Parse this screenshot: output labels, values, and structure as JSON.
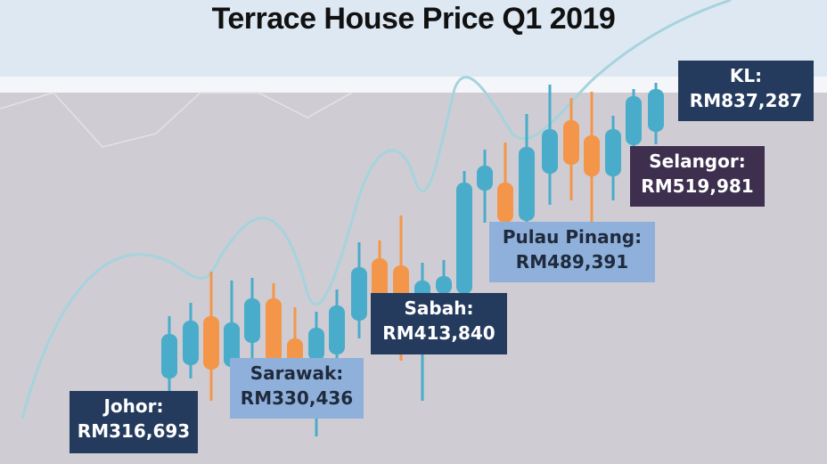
{
  "title": "Terrace House Price Q1 2019",
  "colors": {
    "header_bg": "#dde8f3",
    "plot_bg": "#cfcdd3",
    "teal": "#4aaccb",
    "orange": "#f4964a",
    "trend_line": "#a6d3dd",
    "navy_box": "#243b5e",
    "purple_box": "#3e2f4f",
    "lightblue_box": "#8fb0da"
  },
  "chart_data": {
    "type": "annotated-candlestick",
    "xlabel": "",
    "ylabel": "",
    "annotations": [
      {
        "state": "Johor:",
        "price": "RM316,693",
        "value": 316693,
        "style": "navy"
      },
      {
        "state": "Sarawak:",
        "price": "RM330,436",
        "value": 330436,
        "style": "lightblue"
      },
      {
        "state": "Sabah:",
        "price": "RM413,840",
        "value": 413840,
        "style": "navy"
      },
      {
        "state": "Pulau Pinang:",
        "price": "RM489,391",
        "value": 489391,
        "style": "lightblue"
      },
      {
        "state": "Selangor:",
        "price": "RM519,981",
        "value": 519981,
        "style": "purple"
      },
      {
        "state": "KL:",
        "price": "RM837,287",
        "value": 837287,
        "style": "navy"
      }
    ]
  }
}
